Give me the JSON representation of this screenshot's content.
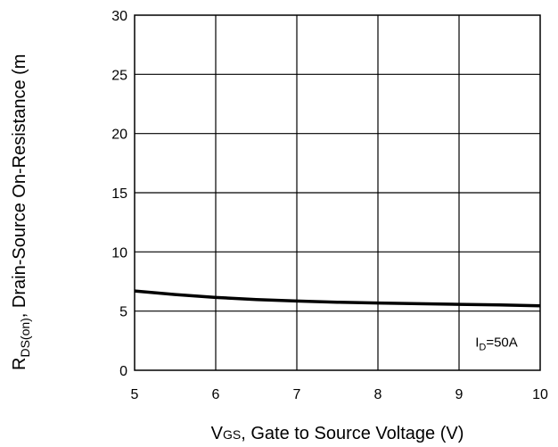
{
  "chart_data": {
    "type": "line",
    "xlabel": {
      "main": "V",
      "sub": "GS",
      "rest": ", Gate to Source Voltage (V)"
    },
    "ylabel": {
      "main": "R",
      "sub": "DS(on)",
      "rest": ", Drain-Source On-Resistance (m"
    },
    "xlim": [
      5,
      10
    ],
    "ylim": [
      0,
      30
    ],
    "x_ticks": [
      "5",
      "6",
      "7",
      "8",
      "9",
      "10"
    ],
    "y_ticks": [
      "0",
      "5",
      "10",
      "15",
      "20",
      "25",
      "30"
    ],
    "grid": true,
    "annotation": {
      "main": "I",
      "sub": "D",
      "rest": "=50A",
      "x": 9.2,
      "y": 2.0
    },
    "series": [
      {
        "x": [
          5.0,
          5.5,
          6.0,
          6.5,
          7.0,
          7.5,
          8.0,
          8.5,
          9.0,
          9.5,
          10.0
        ],
        "values": [
          6.7,
          6.4,
          6.15,
          5.98,
          5.85,
          5.75,
          5.68,
          5.62,
          5.57,
          5.52,
          5.45
        ]
      }
    ]
  }
}
